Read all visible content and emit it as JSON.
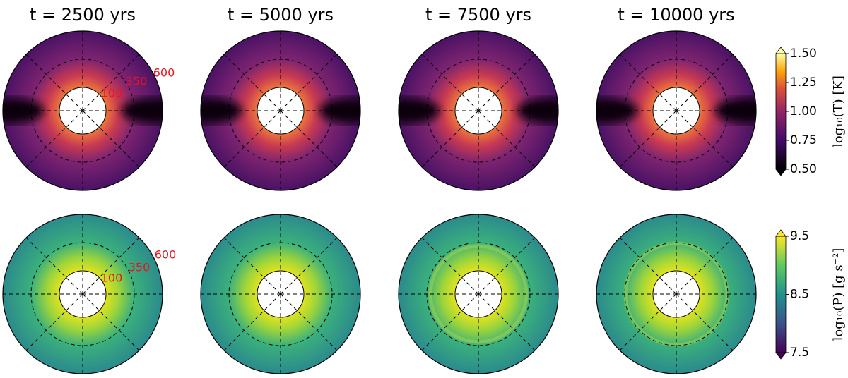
{
  "panels": {
    "titles": [
      "t = 2500 yrs",
      "t = 5000 yrs",
      "t = 7500 yrs",
      "t = 10000 yrs"
    ],
    "radial_labels": [
      "100",
      "350",
      "600"
    ]
  },
  "colorbars": [
    {
      "label": "log₁₀(T) [K]",
      "ticks": [
        {
          "value": 0.5,
          "label": "0.50"
        },
        {
          "value": 0.75,
          "label": "0.75"
        },
        {
          "value": 1.0,
          "label": "1.00"
        },
        {
          "value": 1.25,
          "label": "1.25"
        },
        {
          "value": 1.5,
          "label": "1.50"
        }
      ]
    },
    {
      "label": "log₁₀(P) [g s⁻²]",
      "ticks": [
        {
          "value": 7.5,
          "label": "7.5"
        },
        {
          "value": 8.5,
          "label": "8.5"
        },
        {
          "value": 9.5,
          "label": "9.5"
        }
      ]
    }
  ]
}
